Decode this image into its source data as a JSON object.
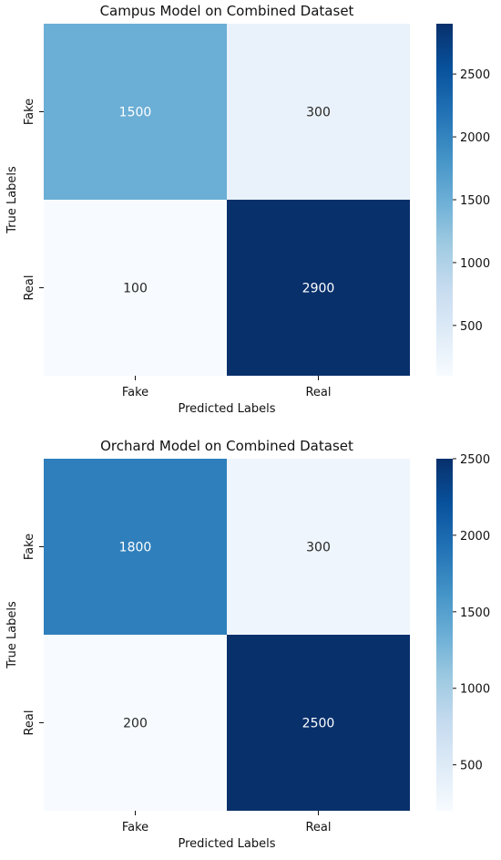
{
  "colors": {
    "cmap_light": "#f7fbff",
    "cmap_mid": "#6baed6",
    "cmap_dark": "#08306b",
    "text_light": "#ffffff",
    "text_dark": "#262626"
  },
  "chart_data": [
    {
      "type": "heatmap",
      "title": "Campus Model on Combined Dataset",
      "xlabel": "Predicted Labels",
      "ylabel": "True Labels",
      "x_categories": [
        "Fake",
        "Real"
      ],
      "y_categories": [
        "Fake",
        "Real"
      ],
      "matrix": [
        [
          1500,
          300
        ],
        [
          100,
          2900
        ]
      ],
      "colorbar": {
        "min": 100,
        "max": 2900,
        "ticks": [
          500,
          1000,
          1500,
          2000,
          2500
        ]
      }
    },
    {
      "type": "heatmap",
      "title": "Orchard Model on Combined Dataset",
      "xlabel": "Predicted Labels",
      "ylabel": "True Labels",
      "x_categories": [
        "Fake",
        "Real"
      ],
      "y_categories": [
        "Fake",
        "Real"
      ],
      "matrix": [
        [
          1800,
          300
        ],
        [
          200,
          2500
        ]
      ],
      "colorbar": {
        "min": 200,
        "max": 2500,
        "ticks": [
          500,
          1000,
          1500,
          2000,
          2500
        ]
      }
    }
  ]
}
